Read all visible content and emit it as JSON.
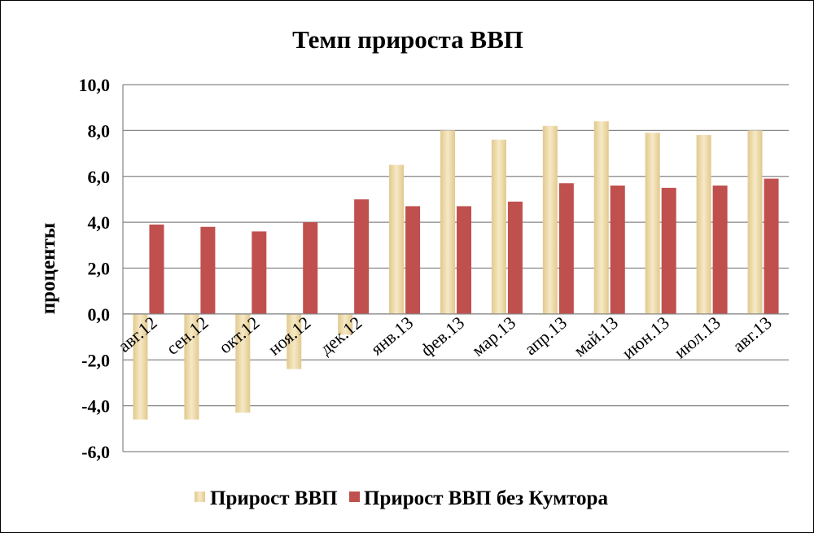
{
  "chart_data": {
    "type": "bar",
    "title": "Темп прироста ВВП",
    "xlabel": "",
    "ylabel": "проценты",
    "ylim": [
      -6,
      10
    ],
    "yticks": [
      -6,
      -4,
      -2,
      0,
      2,
      4,
      6,
      8,
      10
    ],
    "ytick_labels": [
      "-6,0",
      "-4,0",
      "-2,0",
      "0,0",
      "2,0",
      "4,0",
      "6,0",
      "8,0",
      "10,0"
    ],
    "grid": true,
    "legend_position": "bottom",
    "categories": [
      "авг.12",
      "сен.12",
      "окт.12",
      "ноя.12",
      "дек.12",
      "янв.13",
      "фев.13",
      "мар.13",
      "апр.13",
      "май.13",
      "июн.13",
      "июл.13",
      "авг.13"
    ],
    "series": [
      {
        "name": "Прирост ВВП",
        "color": "#ecd9a4",
        "values": [
          -4.6,
          -4.6,
          -4.3,
          -2.4,
          -0.9,
          6.5,
          8.0,
          7.6,
          8.2,
          8.4,
          7.9,
          7.8,
          8.0
        ]
      },
      {
        "name": "Прирост ВВП без Кумтора",
        "color": "#c0504d",
        "values": [
          3.9,
          3.8,
          3.6,
          4.0,
          5.0,
          4.7,
          4.7,
          4.9,
          5.7,
          5.6,
          5.5,
          5.6,
          5.9
        ]
      }
    ]
  }
}
